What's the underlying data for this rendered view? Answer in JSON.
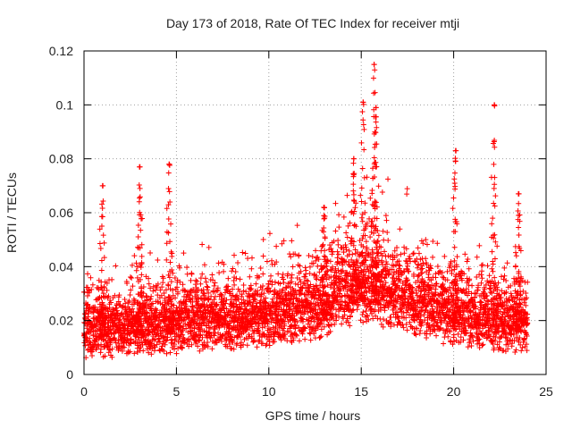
{
  "chart_data": {
    "type": "scatter",
    "title": "Day 173 of 2018, Rate Of TEC Index for receiver mtji",
    "xlabel": "GPS time / hours",
    "ylabel": "ROTI / TECUs",
    "xlim": [
      0,
      25
    ],
    "ylim": [
      0,
      0.12
    ],
    "xticks": [
      0,
      5,
      10,
      15,
      20,
      25
    ],
    "yticks": [
      0,
      0.02,
      0.04,
      0.06,
      0.08,
      0.1,
      0.12
    ],
    "xtick_labels": [
      "0",
      "5",
      "10",
      "15",
      "20",
      "25"
    ],
    "ytick_labels": [
      "0",
      "0.02",
      "0.04",
      "0.06",
      "0.08",
      "0.1",
      "0.12"
    ],
    "grid": true,
    "marker": "+",
    "color": "#ff0000",
    "series": [
      {
        "name": "ROTI",
        "x_range": [
          0,
          24
        ],
        "sample_interval_hours": 0.0083,
        "typical_band": [
          0.007,
          0.035
        ],
        "baseline_trend": [
          {
            "x": 0,
            "y": 0.014
          },
          {
            "x": 5,
            "y": 0.016
          },
          {
            "x": 10,
            "y": 0.018
          },
          {
            "x": 13,
            "y": 0.022
          },
          {
            "x": 15,
            "y": 0.028
          },
          {
            "x": 17,
            "y": 0.024
          },
          {
            "x": 20,
            "y": 0.019
          },
          {
            "x": 24,
            "y": 0.016
          }
        ],
        "peaks": [
          {
            "x": 1.0,
            "y": 0.07
          },
          {
            "x": 3.0,
            "y": 0.077
          },
          {
            "x": 4.6,
            "y": 0.078
          },
          {
            "x": 13.0,
            "y": 0.062
          },
          {
            "x": 14.6,
            "y": 0.08
          },
          {
            "x": 15.1,
            "y": 0.101
          },
          {
            "x": 15.7,
            "y": 0.115
          },
          {
            "x": 15.8,
            "y": 0.099
          },
          {
            "x": 20.1,
            "y": 0.083
          },
          {
            "x": 22.2,
            "y": 0.1
          },
          {
            "x": 23.5,
            "y": 0.067
          }
        ]
      }
    ]
  }
}
